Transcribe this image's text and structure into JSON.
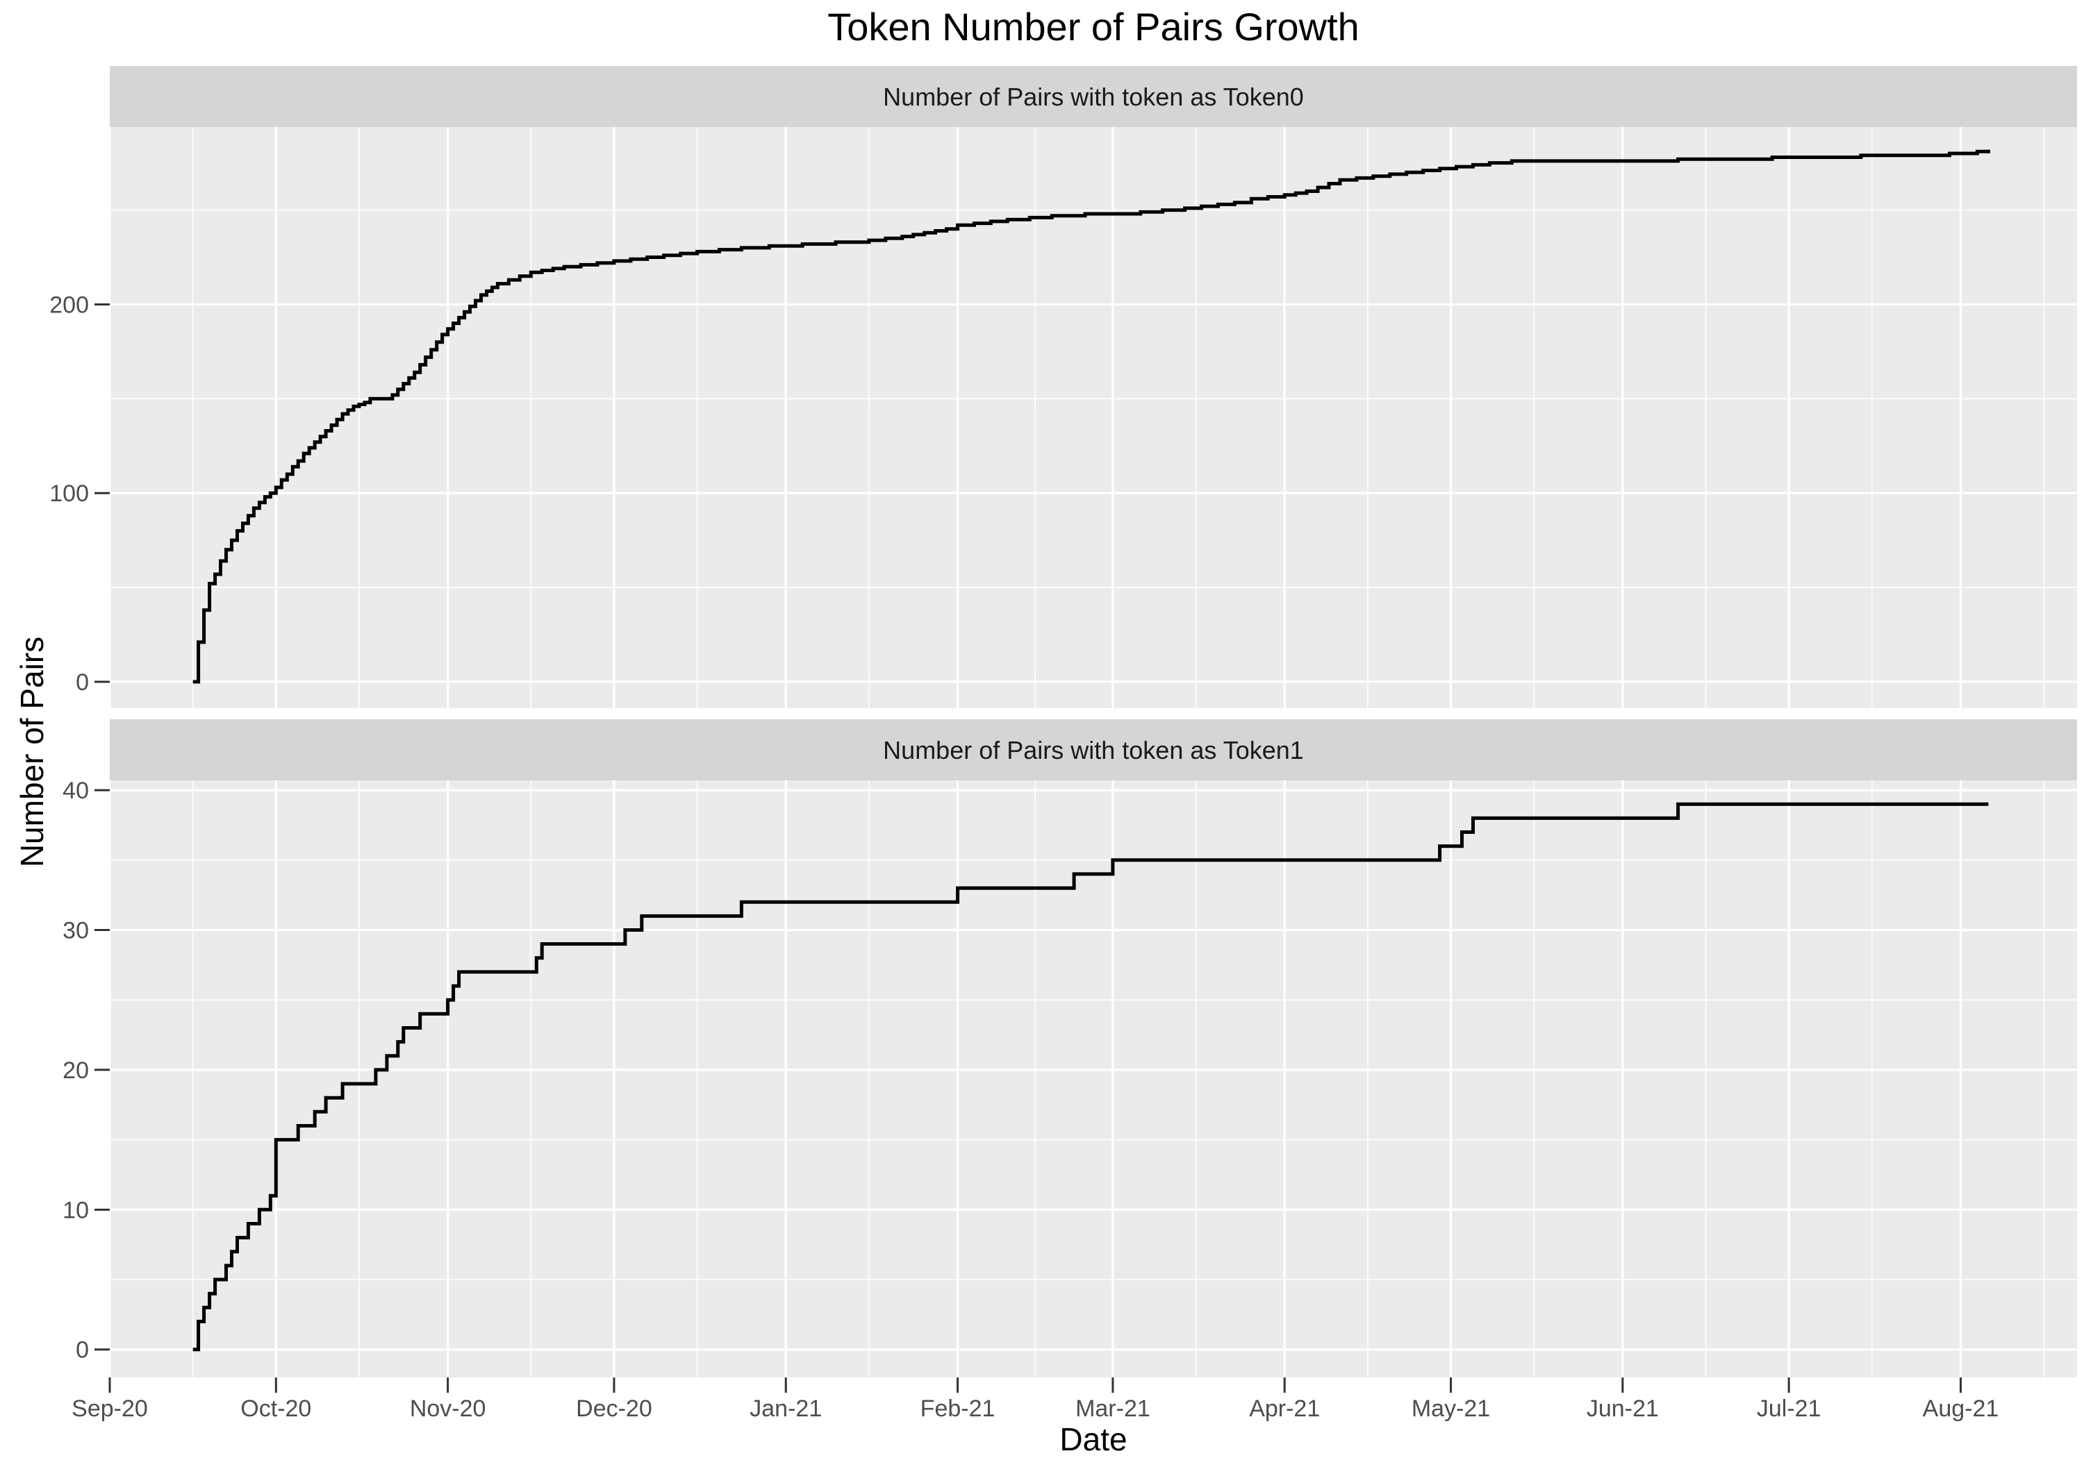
{
  "page": {
    "background": "#FFFFFF"
  },
  "chart_data": {
    "type": "line",
    "variant": "step-after",
    "title": "Token Number of Pairs Growth",
    "xlabel": "Date",
    "ylabel": "Number of Pairs",
    "legend": "none",
    "grid": true,
    "line_color": "#000000",
    "panel_bg": "#EBEBEB",
    "strip_bg": "#D5D5D5",
    "grid_color": "#FFFFFF",
    "axis_text_color": "#4D4D4D",
    "tick_color": "#333333",
    "strip_text_color": "#1A1A1A",
    "x_domain": [
      "2020-09-01",
      "2021-08-22"
    ],
    "x_ticks": [
      {
        "date": "2020-09-01",
        "label": "Sep-20"
      },
      {
        "date": "2020-10-01",
        "label": "Oct-20"
      },
      {
        "date": "2020-11-01",
        "label": "Nov-20"
      },
      {
        "date": "2020-12-01",
        "label": "Dec-20"
      },
      {
        "date": "2021-01-01",
        "label": "Jan-21"
      },
      {
        "date": "2021-02-01",
        "label": "Feb-21"
      },
      {
        "date": "2021-03-01",
        "label": "Mar-21"
      },
      {
        "date": "2021-04-01",
        "label": "Apr-21"
      },
      {
        "date": "2021-05-01",
        "label": "May-21"
      },
      {
        "date": "2021-06-01",
        "label": "Jun-21"
      },
      {
        "date": "2021-07-01",
        "label": "Jul-21"
      },
      {
        "date": "2021-08-01",
        "label": "Aug-21"
      }
    ],
    "x_minor_ticks": [
      "2020-09-16",
      "2020-10-16",
      "2020-11-16",
      "2020-12-16",
      "2021-01-16",
      "2021-02-15",
      "2021-03-16",
      "2021-04-16",
      "2021-05-16",
      "2021-06-16",
      "2021-07-16",
      "2021-08-16"
    ],
    "facets": [
      {
        "label": "Number of Pairs with token as Token0",
        "ylim": [
          -14,
          294
        ],
        "y_ticks": [
          0,
          100,
          200
        ],
        "y_minor_ticks": [
          50,
          150,
          250
        ],
        "series": [
          [
            "2020-09-16",
            0
          ],
          [
            "2020-09-17",
            21
          ],
          [
            "2020-09-18",
            38
          ],
          [
            "2020-09-19",
            52
          ],
          [
            "2020-09-20",
            57
          ],
          [
            "2020-09-21",
            64
          ],
          [
            "2020-09-22",
            70
          ],
          [
            "2020-09-23",
            75
          ],
          [
            "2020-09-24",
            80
          ],
          [
            "2020-09-25",
            84
          ],
          [
            "2020-09-26",
            88
          ],
          [
            "2020-09-27",
            92
          ],
          [
            "2020-09-28",
            95
          ],
          [
            "2020-09-29",
            98
          ],
          [
            "2020-09-30",
            100
          ],
          [
            "2020-10-01",
            103
          ],
          [
            "2020-10-02",
            107
          ],
          [
            "2020-10-03",
            110
          ],
          [
            "2020-10-04",
            114
          ],
          [
            "2020-10-05",
            117
          ],
          [
            "2020-10-06",
            121
          ],
          [
            "2020-10-07",
            124
          ],
          [
            "2020-10-08",
            127
          ],
          [
            "2020-10-09",
            130
          ],
          [
            "2020-10-10",
            133
          ],
          [
            "2020-10-11",
            136
          ],
          [
            "2020-10-12",
            139
          ],
          [
            "2020-10-13",
            142
          ],
          [
            "2020-10-14",
            144
          ],
          [
            "2020-10-15",
            146
          ],
          [
            "2020-10-16",
            147
          ],
          [
            "2020-10-17",
            148
          ],
          [
            "2020-10-18",
            150
          ],
          [
            "2020-10-22",
            152
          ],
          [
            "2020-10-23",
            155
          ],
          [
            "2020-10-24",
            158
          ],
          [
            "2020-10-25",
            161
          ],
          [
            "2020-10-26",
            164
          ],
          [
            "2020-10-27",
            168
          ],
          [
            "2020-10-28",
            172
          ],
          [
            "2020-10-29",
            176
          ],
          [
            "2020-10-30",
            180
          ],
          [
            "2020-10-31",
            184
          ],
          [
            "2020-11-01",
            187
          ],
          [
            "2020-11-02",
            190
          ],
          [
            "2020-11-03",
            193
          ],
          [
            "2020-11-04",
            196
          ],
          [
            "2020-11-05",
            199
          ],
          [
            "2020-11-06",
            202
          ],
          [
            "2020-11-07",
            205
          ],
          [
            "2020-11-08",
            207
          ],
          [
            "2020-11-09",
            209
          ],
          [
            "2020-11-10",
            211
          ],
          [
            "2020-11-12",
            213
          ],
          [
            "2020-11-14",
            215
          ],
          [
            "2020-11-16",
            217
          ],
          [
            "2020-11-18",
            218
          ],
          [
            "2020-11-20",
            219
          ],
          [
            "2020-11-22",
            220
          ],
          [
            "2020-11-25",
            221
          ],
          [
            "2020-11-28",
            222
          ],
          [
            "2020-12-01",
            223
          ],
          [
            "2020-12-04",
            224
          ],
          [
            "2020-12-07",
            225
          ],
          [
            "2020-12-10",
            226
          ],
          [
            "2020-12-13",
            227
          ],
          [
            "2020-12-16",
            228
          ],
          [
            "2020-12-20",
            229
          ],
          [
            "2020-12-24",
            230
          ],
          [
            "2020-12-29",
            231
          ],
          [
            "2021-01-04",
            232
          ],
          [
            "2021-01-10",
            233
          ],
          [
            "2021-01-16",
            234
          ],
          [
            "2021-01-19",
            235
          ],
          [
            "2021-01-22",
            236
          ],
          [
            "2021-01-24",
            237
          ],
          [
            "2021-01-26",
            238
          ],
          [
            "2021-01-28",
            239
          ],
          [
            "2021-01-30",
            240
          ],
          [
            "2021-02-01",
            242
          ],
          [
            "2021-02-04",
            243
          ],
          [
            "2021-02-07",
            244
          ],
          [
            "2021-02-10",
            245
          ],
          [
            "2021-02-14",
            246
          ],
          [
            "2021-02-18",
            247
          ],
          [
            "2021-02-24",
            248
          ],
          [
            "2021-03-06",
            249
          ],
          [
            "2021-03-10",
            250
          ],
          [
            "2021-03-14",
            251
          ],
          [
            "2021-03-17",
            252
          ],
          [
            "2021-03-20",
            253
          ],
          [
            "2021-03-23",
            254
          ],
          [
            "2021-03-26",
            256
          ],
          [
            "2021-03-29",
            257
          ],
          [
            "2021-04-01",
            258
          ],
          [
            "2021-04-03",
            259
          ],
          [
            "2021-04-05",
            260
          ],
          [
            "2021-04-07",
            262
          ],
          [
            "2021-04-09",
            264
          ],
          [
            "2021-04-11",
            266
          ],
          [
            "2021-04-14",
            267
          ],
          [
            "2021-04-17",
            268
          ],
          [
            "2021-04-20",
            269
          ],
          [
            "2021-04-23",
            270
          ],
          [
            "2021-04-26",
            271
          ],
          [
            "2021-04-29",
            272
          ],
          [
            "2021-05-02",
            273
          ],
          [
            "2021-05-05",
            274
          ],
          [
            "2021-05-08",
            275
          ],
          [
            "2021-05-12",
            276
          ],
          [
            "2021-06-11",
            277
          ],
          [
            "2021-06-28",
            278
          ],
          [
            "2021-07-14",
            279
          ],
          [
            "2021-07-30",
            280
          ],
          [
            "2021-08-04",
            281
          ],
          [
            "2021-08-06",
            282
          ]
        ]
      },
      {
        "label": "Number of Pairs with token as Token1",
        "ylim": [
          -2,
          40.7
        ],
        "y_ticks": [
          0,
          10,
          20,
          30,
          40
        ],
        "y_minor_ticks": [
          5,
          15,
          25,
          35
        ],
        "series": [
          [
            "2020-09-16",
            0
          ],
          [
            "2020-09-17",
            2
          ],
          [
            "2020-09-18",
            3
          ],
          [
            "2020-09-19",
            4
          ],
          [
            "2020-09-20",
            5
          ],
          [
            "2020-09-22",
            6
          ],
          [
            "2020-09-23",
            7
          ],
          [
            "2020-09-24",
            8
          ],
          [
            "2020-09-26",
            9
          ],
          [
            "2020-09-28",
            10
          ],
          [
            "2020-09-30",
            11
          ],
          [
            "2020-10-01",
            15
          ],
          [
            "2020-10-05",
            16
          ],
          [
            "2020-10-08",
            17
          ],
          [
            "2020-10-10",
            18
          ],
          [
            "2020-10-13",
            19
          ],
          [
            "2020-10-19",
            20
          ],
          [
            "2020-10-21",
            21
          ],
          [
            "2020-10-23",
            22
          ],
          [
            "2020-10-24",
            23
          ],
          [
            "2020-10-27",
            24
          ],
          [
            "2020-11-01",
            25
          ],
          [
            "2020-11-02",
            26
          ],
          [
            "2020-11-03",
            27
          ],
          [
            "2020-11-17",
            28
          ],
          [
            "2020-11-18",
            29
          ],
          [
            "2020-12-03",
            30
          ],
          [
            "2020-12-06",
            31
          ],
          [
            "2020-12-24",
            32
          ],
          [
            "2021-02-01",
            33
          ],
          [
            "2021-02-22",
            34
          ],
          [
            "2021-03-01",
            35
          ],
          [
            "2021-04-29",
            36
          ],
          [
            "2021-05-03",
            37
          ],
          [
            "2021-05-05",
            38
          ],
          [
            "2021-06-11",
            39
          ],
          [
            "2021-08-06",
            39
          ]
        ]
      }
    ]
  }
}
